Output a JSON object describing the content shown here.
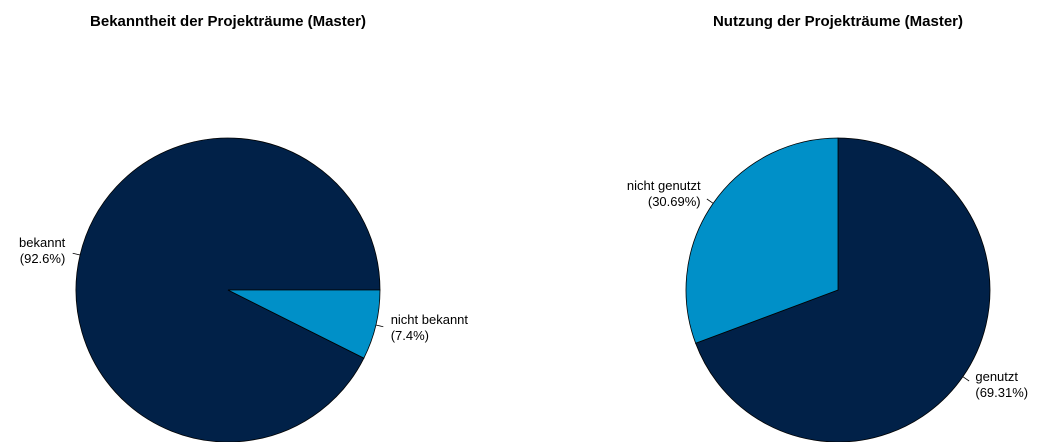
{
  "chart_data": [
    {
      "type": "pie",
      "title": "Bekanntheit der Projekträume (Master)",
      "categories": [
        "bekannt",
        "nicht bekannt"
      ],
      "values": [
        92.6,
        7.4
      ],
      "value_labels": [
        "(92.6%)",
        "(7.4%)"
      ],
      "colors": [
        "#012148",
        "#0090c8"
      ],
      "start_angle": 0,
      "clockwise": false
    },
    {
      "type": "pie",
      "title": "Nutzung der Projekträume (Master)",
      "categories": [
        "genutzt",
        "nicht genutzt"
      ],
      "values": [
        69.31,
        30.69
      ],
      "value_labels": [
        "(69.31%)",
        "(30.69%)"
      ],
      "colors": [
        "#012148",
        "#0090c8"
      ],
      "start_angle": 90,
      "clockwise": true
    }
  ]
}
